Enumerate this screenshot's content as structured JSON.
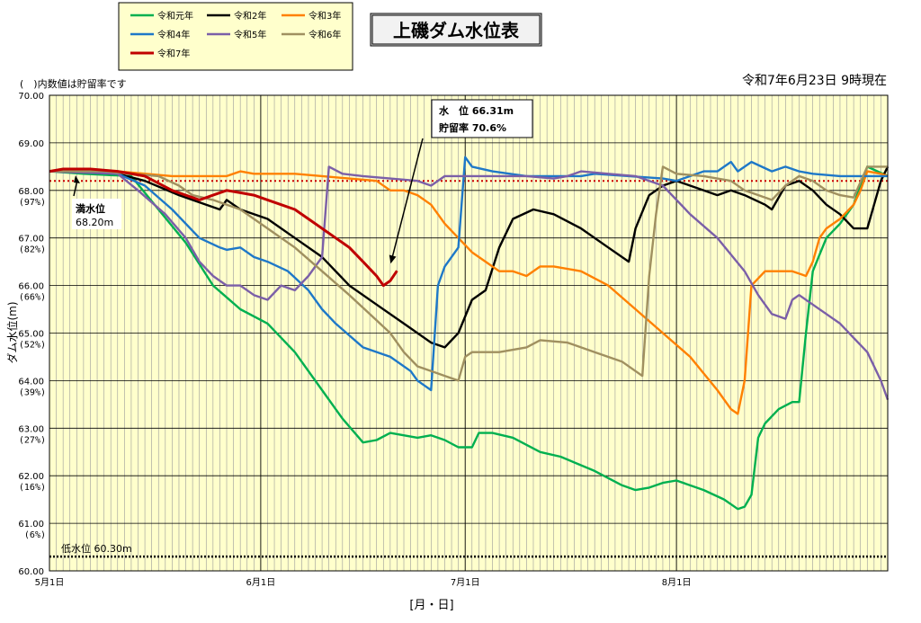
{
  "chart_data": {
    "type": "line",
    "title": "上磯ダム水位表",
    "date_label": "令和7年6月23日 9時現在",
    "note": "(　)内数値は貯留率です",
    "xlabel": "[月・日]",
    "ylabel": "ダム水位(m)",
    "ylim": [
      60.0,
      70.0
    ],
    "xlim_days": [
      0,
      123
    ],
    "y_ticks": [
      "60.00",
      "61.00",
      "62.00",
      "63.00",
      "64.00",
      "65.00",
      "66.00",
      "67.00",
      "68.00",
      "69.00",
      "70.00"
    ],
    "y_pct_ticks": [
      {
        "y": 61.0,
        "label": "(6%)"
      },
      {
        "y": 62.0,
        "label": "(16%)"
      },
      {
        "y": 63.0,
        "label": "(27%)"
      },
      {
        "y": 64.0,
        "label": "(39%)"
      },
      {
        "y": 65.0,
        "label": "(52%)"
      },
      {
        "y": 66.0,
        "label": "(66%)"
      },
      {
        "y": 67.0,
        "label": "(82%)"
      },
      {
        "y": 68.0,
        "label": "(97%)"
      }
    ],
    "x_ticks": [
      {
        "day": 0,
        "label": "5月1日"
      },
      {
        "day": 31,
        "label": "6月1日"
      },
      {
        "day": 61,
        "label": "7月1日"
      },
      {
        "day": 92,
        "label": "8月1日"
      }
    ],
    "reference_lines": [
      {
        "name": "満水位",
        "label": "満水位",
        "value_label": "68.20m",
        "y": 68.2,
        "color": "#cc0000"
      },
      {
        "name": "低水位",
        "label": "低水位 60.30m",
        "y": 60.3,
        "color": "#000000"
      }
    ],
    "callout": {
      "line1": "水　位 66.31m",
      "line2": "貯留率 70.6%",
      "day": 50,
      "y": 66.31
    },
    "series": [
      {
        "name": "令和元年",
        "color": "#00b050",
        "points": [
          [
            0,
            68.4
          ],
          [
            5,
            68.35
          ],
          [
            12,
            68.3
          ],
          [
            16,
            67.6
          ],
          [
            20,
            66.9
          ],
          [
            24,
            66.0
          ],
          [
            28,
            65.5
          ],
          [
            32,
            65.2
          ],
          [
            36,
            64.6
          ],
          [
            40,
            63.8
          ],
          [
            43,
            63.2
          ],
          [
            46,
            62.7
          ],
          [
            48,
            62.75
          ],
          [
            50,
            62.9
          ],
          [
            54,
            62.8
          ],
          [
            56,
            62.85
          ],
          [
            58,
            62.75
          ],
          [
            60,
            62.6
          ],
          [
            62,
            62.6
          ],
          [
            63,
            62.9
          ],
          [
            65,
            62.9
          ],
          [
            68,
            62.8
          ],
          [
            72,
            62.5
          ],
          [
            75,
            62.4
          ],
          [
            80,
            62.1
          ],
          [
            84,
            61.8
          ],
          [
            86,
            61.7
          ],
          [
            88,
            61.75
          ],
          [
            90,
            61.85
          ],
          [
            92,
            61.9
          ],
          [
            96,
            61.7
          ],
          [
            99,
            61.5
          ],
          [
            101,
            61.3
          ],
          [
            102,
            61.35
          ],
          [
            103,
            61.6
          ],
          [
            104,
            62.8
          ],
          [
            105,
            63.1
          ],
          [
            107,
            63.4
          ],
          [
            109,
            63.55
          ],
          [
            110,
            63.55
          ],
          [
            111,
            65.0
          ],
          [
            112,
            66.3
          ],
          [
            114,
            67.0
          ],
          [
            116,
            67.3
          ],
          [
            118,
            67.7
          ],
          [
            120,
            68.5
          ],
          [
            123,
            68.3
          ]
        ]
      },
      {
        "name": "令和2年",
        "color": "#000000",
        "points": [
          [
            0,
            68.4
          ],
          [
            10,
            68.35
          ],
          [
            14,
            68.2
          ],
          [
            19,
            67.9
          ],
          [
            23,
            67.7
          ],
          [
            25,
            67.6
          ],
          [
            26,
            67.8
          ],
          [
            28,
            67.6
          ],
          [
            32,
            67.4
          ],
          [
            36,
            67.0
          ],
          [
            40,
            66.6
          ],
          [
            44,
            66.0
          ],
          [
            48,
            65.6
          ],
          [
            52,
            65.2
          ],
          [
            56,
            64.8
          ],
          [
            58,
            64.7
          ],
          [
            60,
            65.0
          ],
          [
            62,
            65.7
          ],
          [
            64,
            65.9
          ],
          [
            66,
            66.8
          ],
          [
            68,
            67.4
          ],
          [
            71,
            67.6
          ],
          [
            74,
            67.5
          ],
          [
            78,
            67.2
          ],
          [
            82,
            66.8
          ],
          [
            85,
            66.5
          ],
          [
            86,
            67.2
          ],
          [
            88,
            67.9
          ],
          [
            90,
            68.1
          ],
          [
            92,
            68.2
          ],
          [
            94,
            68.1
          ],
          [
            96,
            68.0
          ],
          [
            98,
            67.9
          ],
          [
            100,
            68.0
          ],
          [
            102,
            67.9
          ],
          [
            105,
            67.7
          ],
          [
            106,
            67.6
          ],
          [
            108,
            68.1
          ],
          [
            110,
            68.2
          ],
          [
            112,
            68.0
          ],
          [
            114,
            67.7
          ],
          [
            116,
            67.5
          ],
          [
            118,
            67.2
          ],
          [
            120,
            67.2
          ],
          [
            122,
            68.2
          ],
          [
            123,
            68.5
          ]
        ]
      },
      {
        "name": "令和3年",
        "color": "#ff8000",
        "points": [
          [
            0,
            68.4
          ],
          [
            10,
            68.4
          ],
          [
            18,
            68.3
          ],
          [
            23,
            68.3
          ],
          [
            26,
            68.3
          ],
          [
            28,
            68.4
          ],
          [
            30,
            68.35
          ],
          [
            34,
            68.35
          ],
          [
            36,
            68.35
          ],
          [
            40,
            68.3
          ],
          [
            44,
            68.25
          ],
          [
            48,
            68.2
          ],
          [
            50,
            68.0
          ],
          [
            52,
            68.0
          ],
          [
            54,
            67.9
          ],
          [
            56,
            67.7
          ],
          [
            58,
            67.3
          ],
          [
            60,
            67.0
          ],
          [
            62,
            66.7
          ],
          [
            64,
            66.5
          ],
          [
            66,
            66.3
          ],
          [
            68,
            66.3
          ],
          [
            70,
            66.2
          ],
          [
            72,
            66.4
          ],
          [
            74,
            66.4
          ],
          [
            78,
            66.3
          ],
          [
            82,
            66.0
          ],
          [
            86,
            65.5
          ],
          [
            90,
            65.0
          ],
          [
            94,
            64.5
          ],
          [
            98,
            63.8
          ],
          [
            100,
            63.4
          ],
          [
            101,
            63.3
          ],
          [
            102,
            64.0
          ],
          [
            103,
            66.0
          ],
          [
            105,
            66.3
          ],
          [
            107,
            66.3
          ],
          [
            109,
            66.3
          ],
          [
            111,
            66.2
          ],
          [
            112,
            66.5
          ],
          [
            113,
            67.0
          ],
          [
            114,
            67.2
          ],
          [
            116,
            67.4
          ],
          [
            118,
            67.7
          ],
          [
            119,
            68.0
          ],
          [
            120,
            68.4
          ],
          [
            122,
            68.35
          ],
          [
            123,
            68.3
          ]
        ]
      },
      {
        "name": "令和4年",
        "color": "#1e78c8",
        "points": [
          [
            0,
            68.4
          ],
          [
            10,
            68.35
          ],
          [
            14,
            68.1
          ],
          [
            18,
            67.6
          ],
          [
            22,
            67.0
          ],
          [
            25,
            66.8
          ],
          [
            26,
            66.75
          ],
          [
            28,
            66.8
          ],
          [
            30,
            66.6
          ],
          [
            32,
            66.5
          ],
          [
            35,
            66.3
          ],
          [
            38,
            65.9
          ],
          [
            40,
            65.5
          ],
          [
            42,
            65.2
          ],
          [
            46,
            64.7
          ],
          [
            50,
            64.5
          ],
          [
            53,
            64.2
          ],
          [
            54,
            64.0
          ],
          [
            55,
            63.9
          ],
          [
            56,
            63.8
          ],
          [
            57,
            66.0
          ],
          [
            58,
            66.4
          ],
          [
            60,
            66.8
          ],
          [
            61,
            68.7
          ],
          [
            62,
            68.5
          ],
          [
            65,
            68.4
          ],
          [
            70,
            68.3
          ],
          [
            75,
            68.3
          ],
          [
            78,
            68.3
          ],
          [
            80,
            68.35
          ],
          [
            85,
            68.3
          ],
          [
            90,
            68.25
          ],
          [
            92,
            68.2
          ],
          [
            94,
            68.3
          ],
          [
            96,
            68.4
          ],
          [
            98,
            68.4
          ],
          [
            100,
            68.6
          ],
          [
            101,
            68.4
          ],
          [
            103,
            68.6
          ],
          [
            106,
            68.4
          ],
          [
            108,
            68.5
          ],
          [
            110,
            68.4
          ],
          [
            112,
            68.35
          ],
          [
            116,
            68.3
          ],
          [
            120,
            68.3
          ],
          [
            123,
            68.3
          ]
        ]
      },
      {
        "name": "令和5年",
        "color": "#7b5fa8",
        "points": [
          [
            0,
            68.4
          ],
          [
            10,
            68.35
          ],
          [
            13,
            68.0
          ],
          [
            17,
            67.5
          ],
          [
            20,
            67.0
          ],
          [
            22,
            66.5
          ],
          [
            24,
            66.2
          ],
          [
            26,
            66.0
          ],
          [
            28,
            66.0
          ],
          [
            30,
            65.8
          ],
          [
            32,
            65.7
          ],
          [
            34,
            66.0
          ],
          [
            36,
            65.9
          ],
          [
            38,
            66.2
          ],
          [
            40,
            66.6
          ],
          [
            41,
            68.5
          ],
          [
            43,
            68.35
          ],
          [
            46,
            68.3
          ],
          [
            50,
            68.25
          ],
          [
            54,
            68.2
          ],
          [
            56,
            68.1
          ],
          [
            58,
            68.3
          ],
          [
            62,
            68.3
          ],
          [
            66,
            68.3
          ],
          [
            70,
            68.3
          ],
          [
            74,
            68.25
          ],
          [
            76,
            68.3
          ],
          [
            78,
            68.4
          ],
          [
            82,
            68.35
          ],
          [
            86,
            68.3
          ],
          [
            90,
            68.1
          ],
          [
            94,
            67.5
          ],
          [
            98,
            67.0
          ],
          [
            102,
            66.3
          ],
          [
            104,
            65.8
          ],
          [
            106,
            65.4
          ],
          [
            108,
            65.3
          ],
          [
            109,
            65.7
          ],
          [
            110,
            65.8
          ],
          [
            112,
            65.6
          ],
          [
            114,
            65.4
          ],
          [
            116,
            65.2
          ],
          [
            118,
            64.9
          ],
          [
            120,
            64.6
          ],
          [
            122,
            64.0
          ],
          [
            123,
            63.6
          ]
        ]
      },
      {
        "name": "令和6年",
        "color": "#a09060",
        "points": [
          [
            0,
            68.4
          ],
          [
            8,
            68.4
          ],
          [
            12,
            68.35
          ],
          [
            16,
            68.3
          ],
          [
            19,
            68.1
          ],
          [
            21,
            67.9
          ],
          [
            24,
            67.8
          ],
          [
            28,
            67.6
          ],
          [
            32,
            67.2
          ],
          [
            36,
            66.8
          ],
          [
            40,
            66.3
          ],
          [
            44,
            65.8
          ],
          [
            47,
            65.4
          ],
          [
            50,
            65.0
          ],
          [
            52,
            64.6
          ],
          [
            54,
            64.3
          ],
          [
            56,
            64.2
          ],
          [
            58,
            64.1
          ],
          [
            60,
            64.0
          ],
          [
            61,
            64.5
          ],
          [
            62,
            64.6
          ],
          [
            66,
            64.6
          ],
          [
            70,
            64.7
          ],
          [
            72,
            64.85
          ],
          [
            76,
            64.8
          ],
          [
            80,
            64.6
          ],
          [
            84,
            64.4
          ],
          [
            86,
            64.2
          ],
          [
            87,
            64.1
          ],
          [
            88,
            66.2
          ],
          [
            89,
            67.5
          ],
          [
            90,
            68.5
          ],
          [
            92,
            68.35
          ],
          [
            96,
            68.3
          ],
          [
            100,
            68.2
          ],
          [
            102,
            68.0
          ],
          [
            106,
            67.8
          ],
          [
            108,
            68.1
          ],
          [
            110,
            68.3
          ],
          [
            112,
            68.2
          ],
          [
            114,
            68.0
          ],
          [
            116,
            67.9
          ],
          [
            118,
            67.85
          ],
          [
            120,
            68.5
          ],
          [
            123,
            68.5
          ]
        ]
      },
      {
        "name": "令和7年",
        "color": "#c00000",
        "points": [
          [
            0,
            68.4
          ],
          [
            2,
            68.45
          ],
          [
            6,
            68.45
          ],
          [
            10,
            68.4
          ],
          [
            14,
            68.3
          ],
          [
            18,
            68.0
          ],
          [
            22,
            67.8
          ],
          [
            24,
            67.9
          ],
          [
            26,
            68.0
          ],
          [
            28,
            67.95
          ],
          [
            30,
            67.9
          ],
          [
            32,
            67.8
          ],
          [
            34,
            67.7
          ],
          [
            36,
            67.6
          ],
          [
            38,
            67.4
          ],
          [
            40,
            67.2
          ],
          [
            42,
            67.0
          ],
          [
            44,
            66.8
          ],
          [
            46,
            66.5
          ],
          [
            48,
            66.2
          ],
          [
            49,
            66.0
          ],
          [
            50,
            66.1
          ],
          [
            51,
            66.31
          ]
        ]
      }
    ]
  }
}
